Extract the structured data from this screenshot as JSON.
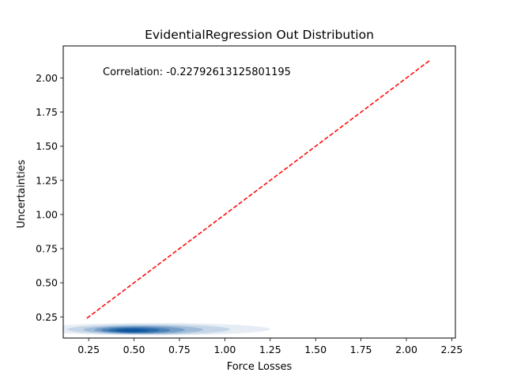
{
  "chart_data": {
    "type": "density",
    "title": "EvidentialRegression Out Distribution",
    "xlabel": "Force Losses",
    "ylabel": "Uncertainties",
    "annotation": "Correlation: -0.22792613125801195",
    "xlim": [
      0.11,
      2.27
    ],
    "ylim": [
      0.095,
      2.235
    ],
    "x_ticks": [
      0.25,
      0.5,
      0.75,
      1.0,
      1.25,
      1.5,
      1.75,
      2.0,
      2.25
    ],
    "x_tick_labels": [
      "0.25",
      "0.50",
      "0.75",
      "1.00",
      "1.25",
      "1.50",
      "1.75",
      "2.00",
      "2.25"
    ],
    "y_ticks": [
      0.25,
      0.5,
      0.75,
      1.0,
      1.25,
      1.5,
      1.75,
      2.0
    ],
    "y_tick_labels": [
      "0.25",
      "0.50",
      "0.75",
      "1.00",
      "1.25",
      "1.50",
      "1.75",
      "2.00"
    ],
    "reference_line": {
      "x": [
        0.24,
        2.13
      ],
      "y": [
        0.24,
        2.13
      ],
      "color": "#ff0000",
      "style": "dashed"
    },
    "density_contours": [
      {
        "cx": 0.6,
        "cy": 0.16,
        "rx": 0.65,
        "ry": 0.045,
        "opacity": 0.1
      },
      {
        "cx": 0.58,
        "cy": 0.158,
        "rx": 0.45,
        "ry": 0.038,
        "opacity": 0.14
      },
      {
        "cx": 0.55,
        "cy": 0.156,
        "rx": 0.33,
        "ry": 0.032,
        "opacity": 0.2
      },
      {
        "cx": 0.53,
        "cy": 0.155,
        "rx": 0.25,
        "ry": 0.027,
        "opacity": 0.28
      },
      {
        "cx": 0.51,
        "cy": 0.153,
        "rx": 0.19,
        "ry": 0.022,
        "opacity": 0.38
      },
      {
        "cx": 0.5,
        "cy": 0.152,
        "rx": 0.14,
        "ry": 0.017,
        "opacity": 0.5
      },
      {
        "cx": 0.49,
        "cy": 0.151,
        "rx": 0.09,
        "ry": 0.012,
        "opacity": 0.65
      },
      {
        "cx": 0.49,
        "cy": 0.15,
        "rx": 0.05,
        "ry": 0.007,
        "opacity": 0.85
      }
    ],
    "density_color": "#08519c"
  }
}
